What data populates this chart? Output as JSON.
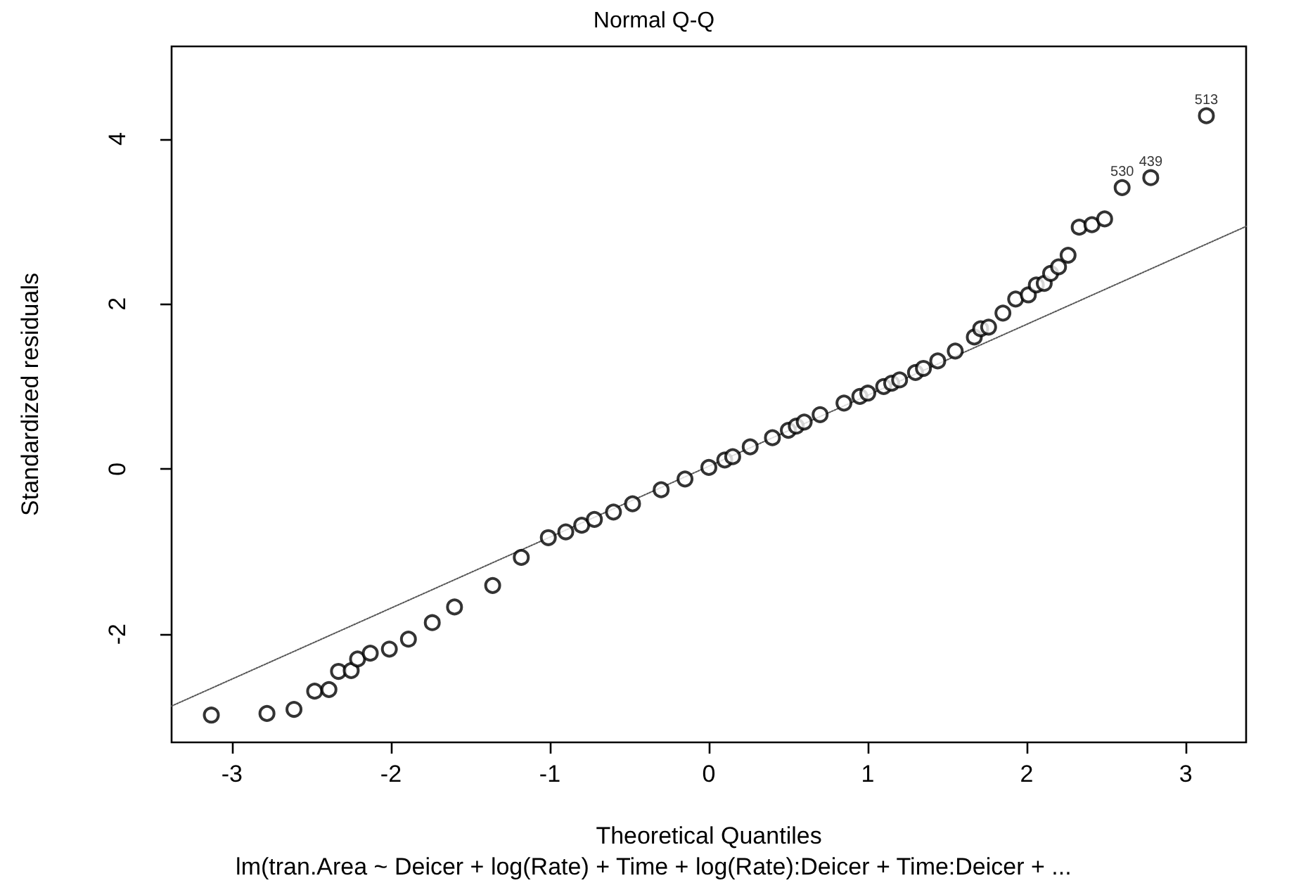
{
  "chart_data": {
    "type": "scatter",
    "title": "Normal Q-Q",
    "xlabel": "Theoretical Quantiles",
    "ylabel": "Standardized residuals",
    "xlim": [
      -3.38,
      3.38
    ],
    "xticks": [
      -3,
      -2,
      -1,
      0,
      1,
      2,
      3
    ],
    "ylim": [
      -3.31,
      5.12
    ],
    "yticks": [
      -2,
      0,
      2,
      4
    ],
    "grid": false,
    "series": [
      {
        "marker": "circle",
        "color": "#000000",
        "x": [
          -3.13,
          -2.78,
          -2.61,
          -2.48,
          -2.39,
          -2.33,
          -2.25,
          -2.21,
          -2.13,
          -2.01,
          -1.89,
          -1.74,
          -1.6,
          -1.36,
          -1.18,
          -1.01,
          -0.9,
          -0.8,
          -0.72,
          -0.6,
          -0.48,
          -0.3,
          -0.15,
          0,
          0.1,
          0.15,
          0.26,
          0.4,
          0.5,
          0.55,
          0.6,
          0.7,
          0.85,
          0.95,
          1,
          1.1,
          1.15,
          1.2,
          1.3,
          1.35,
          1.44,
          1.55,
          1.67,
          1.71,
          1.76,
          1.85,
          1.93,
          2.01,
          2.06,
          2.11,
          2.15,
          2.2,
          2.26,
          2.33,
          2.41,
          2.49,
          2.6,
          2.78,
          3.13
        ],
        "values": [
          -2.98,
          -2.96,
          -2.91,
          -2.69,
          -2.67,
          -2.45,
          -2.44,
          -2.3,
          -2.23,
          -2.18,
          -2.06,
          -1.86,
          -1.67,
          -1.41,
          -1.07,
          -0.83,
          -0.76,
          -0.68,
          -0.61,
          -0.52,
          -0.42,
          -0.25,
          -0.12,
          0.02,
          0.11,
          0.15,
          0.27,
          0.38,
          0.47,
          0.52,
          0.57,
          0.66,
          0.8,
          0.88,
          0.92,
          1,
          1.04,
          1.08,
          1.17,
          1.22,
          1.31,
          1.43,
          1.6,
          1.7,
          1.72,
          1.89,
          2.06,
          2.11,
          2.23,
          2.25,
          2.37,
          2.45,
          2.59,
          2.93,
          2.96,
          3.03,
          3.41,
          3.53,
          4.28
        ]
      },
      {
        "type": "line",
        "color": "#555555",
        "line_style": "dotted",
        "x": [
          -3.38,
          3.38
        ],
        "values": [
          -2.87,
          2.94
        ]
      }
    ],
    "annotations": [
      {
        "text": "513",
        "x": 3.13,
        "y": 4.28
      },
      {
        "text": "530",
        "x": 2.6,
        "y": 3.41
      },
      {
        "text": "439",
        "x": 2.78,
        "y": 3.53
      },
      "lm(tran.Area ~ Deicer + log(Rate) + Time + log(Rate):Deicer + Time:Deicer + ..."
    ]
  }
}
